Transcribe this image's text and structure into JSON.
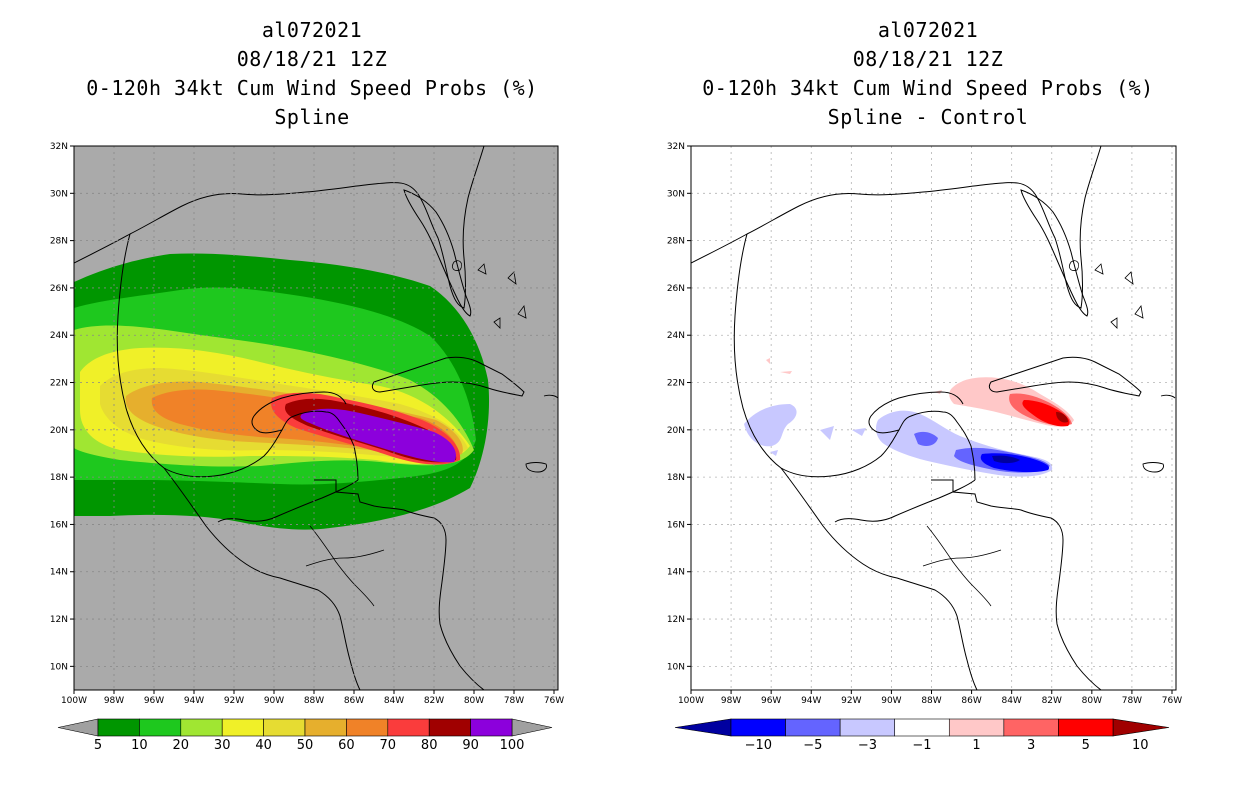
{
  "left_panel": {
    "title_lines": [
      "al072021",
      "08/18/21 12Z",
      "0-120h 34kt Cum Wind Speed Probs (%)",
      "Spline"
    ]
  },
  "right_panel": {
    "title_lines": [
      "al072021",
      "08/18/21 12Z",
      "0-120h 34kt Cum Wind Speed Probs (%)",
      "Spline - Control"
    ]
  },
  "chart_data": [
    {
      "type": "heatmap",
      "title": "0-120h 34kt Cum Wind Speed Probs (%)",
      "subtitle": "Spline",
      "storm_id": "al072021",
      "date": "08/18/21 12Z",
      "x_ticks": [
        "100W",
        "98W",
        "96W",
        "94W",
        "92W",
        "90W",
        "88W",
        "86W",
        "84W",
        "82W",
        "80W",
        "78W",
        "76W"
      ],
      "y_ticks": [
        "32N",
        "30N",
        "28N",
        "26N",
        "24N",
        "22N",
        "20N",
        "18N",
        "16N",
        "14N",
        "12N",
        "10N"
      ],
      "xlim": [
        -100,
        -75.8
      ],
      "ylim": [
        9,
        32
      ],
      "colorbar": {
        "levels": [
          5,
          10,
          20,
          30,
          40,
          50,
          60,
          70,
          80,
          90,
          100
        ],
        "colors": [
          "#009600",
          "#1ec81e",
          "#a0e632",
          "#f0f028",
          "#e6dc32",
          "#e6af2d",
          "#f08228",
          "#fa3c3c",
          "#a00000",
          "#8c00dc"
        ],
        "end_color": "#a0a0a0"
      },
      "background_color": "#aaaaaa",
      "grid": true
    },
    {
      "type": "heatmap",
      "title": "0-120h 34kt Cum Wind Speed Probs (%)",
      "subtitle": "Spline - Control",
      "storm_id": "al072021",
      "date": "08/18/21 12Z",
      "x_ticks": [
        "100W",
        "98W",
        "96W",
        "94W",
        "92W",
        "90W",
        "88W",
        "86W",
        "84W",
        "82W",
        "80W",
        "78W",
        "76W"
      ],
      "y_ticks": [
        "32N",
        "30N",
        "28N",
        "26N",
        "24N",
        "22N",
        "20N",
        "18N",
        "16N",
        "14N",
        "12N",
        "10N"
      ],
      "xlim": [
        -100,
        -75.8
      ],
      "ylim": [
        9,
        32
      ],
      "colorbar": {
        "levels": [
          "-10",
          "-5",
          "-3",
          "-1",
          "1",
          "3",
          "5",
          "10"
        ],
        "colors": [
          "#0000a0",
          "#0000ff",
          "#6464ff",
          "#c8c8ff",
          "#ffffff",
          "#ffc8c8",
          "#ff6464",
          "#ff0000",
          "#a00000"
        ]
      },
      "background_color": "#ffffff",
      "grid": true
    }
  ]
}
